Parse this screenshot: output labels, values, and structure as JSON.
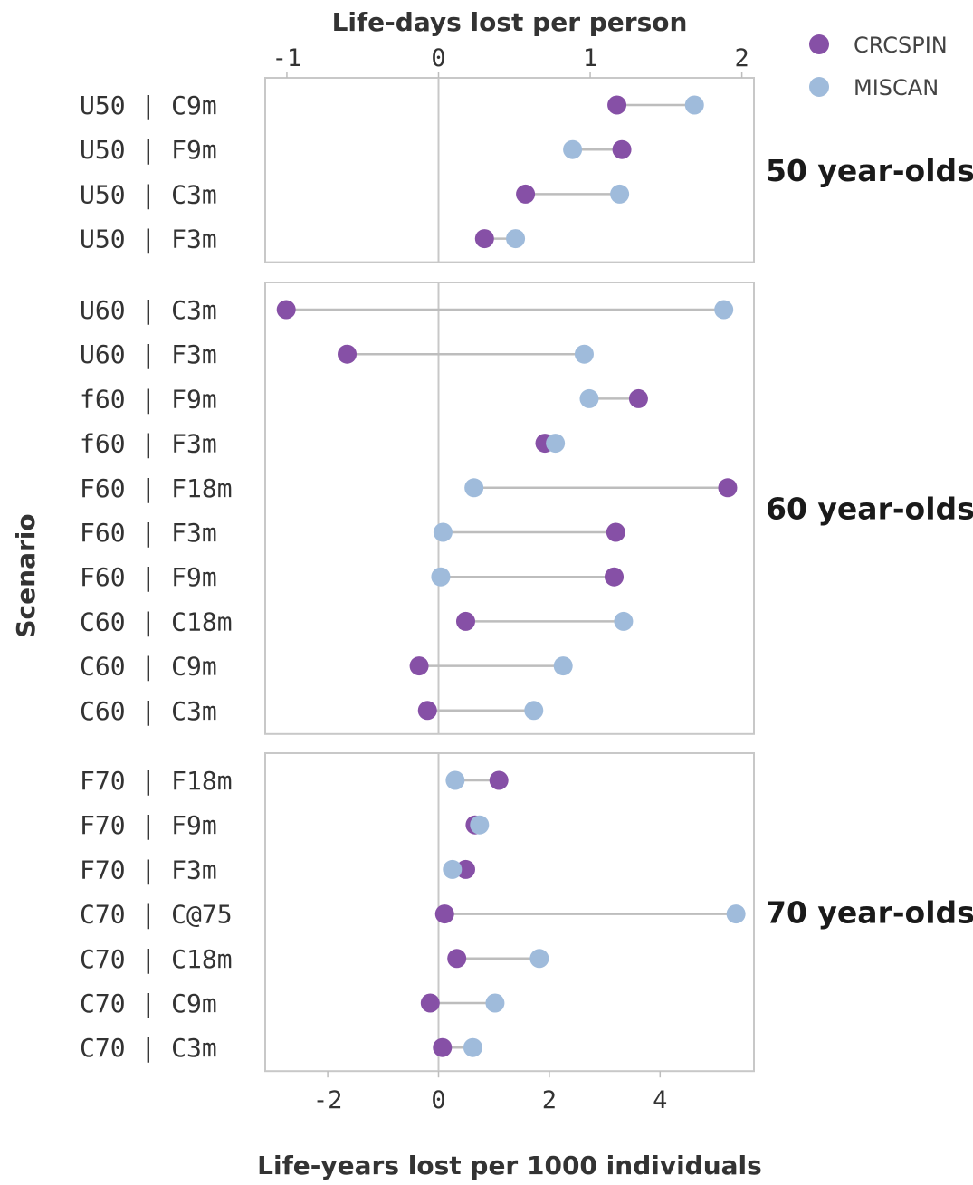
{
  "chart_data": {
    "type": "dumbbell",
    "xlabel_bottom": "Life-years lost per 1000 individuals",
    "xlabel_top": "Life-days lost per person",
    "ylabel": "Scenario",
    "bottom_ticks": [
      -2,
      0,
      2,
      4
    ],
    "top_ticks": [
      -1,
      0,
      1,
      2
    ],
    "top_tick_labels": [
      "-1",
      "0",
      "1",
      "2"
    ],
    "bottom_tick_labels": [
      "-2",
      "0",
      "2",
      "4"
    ],
    "xlim": [
      -3.15,
      5.7
    ],
    "legend": {
      "position": "top-right",
      "items": [
        {
          "name": "CRCSPIN",
          "color": "#8650a6"
        },
        {
          "name": "MISCAN",
          "color": "#9fbbdb"
        }
      ]
    },
    "series": [
      {
        "name": "CRCSPIN",
        "color": "#8650a6"
      },
      {
        "name": "MISCAN",
        "color": "#9fbbdb"
      }
    ],
    "panels": [
      {
        "label": "50 year-olds",
        "rows": [
          {
            "scenario": "U50 | C9m",
            "CRCSPIN": 3.22,
            "MISCAN": 4.62
          },
          {
            "scenario": "U50 | F9m",
            "CRCSPIN": 3.31,
            "MISCAN": 2.42
          },
          {
            "scenario": "U50 | C3m",
            "CRCSPIN": 1.57,
            "MISCAN": 3.27
          },
          {
            "scenario": "U50 | F3m",
            "CRCSPIN": 0.83,
            "MISCAN": 1.39
          }
        ]
      },
      {
        "label": "60 year-olds",
        "rows": [
          {
            "scenario": "U60 | C3m",
            "CRCSPIN": -2.75,
            "MISCAN": 5.15
          },
          {
            "scenario": "U60 | F3m",
            "CRCSPIN": -1.65,
            "MISCAN": 2.63
          },
          {
            "scenario": "f60 | F9m",
            "CRCSPIN": 3.61,
            "MISCAN": 2.72
          },
          {
            "scenario": "f60 | F3m",
            "CRCSPIN": 1.92,
            "MISCAN": 2.11
          },
          {
            "scenario": "F60 | F18m",
            "CRCSPIN": 5.22,
            "MISCAN": 0.64
          },
          {
            "scenario": "F60 | F3m",
            "CRCSPIN": 3.2,
            "MISCAN": 0.08
          },
          {
            "scenario": "F60 | F9m",
            "CRCSPIN": 3.17,
            "MISCAN": 0.04
          },
          {
            "scenario": "C60 | C18m",
            "CRCSPIN": 0.49,
            "MISCAN": 3.34
          },
          {
            "scenario": "C60 | C9m",
            "CRCSPIN": -0.35,
            "MISCAN": 2.25
          },
          {
            "scenario": "C60 | C3m",
            "CRCSPIN": -0.2,
            "MISCAN": 1.72
          }
        ]
      },
      {
        "label": "70 year-olds",
        "rows": [
          {
            "scenario": "F70 | F18m",
            "CRCSPIN": 1.09,
            "MISCAN": 0.3
          },
          {
            "scenario": "F70 | F9m",
            "CRCSPIN": 0.66,
            "MISCAN": 0.74
          },
          {
            "scenario": "F70 | F3m",
            "CRCSPIN": 0.49,
            "MISCAN": 0.25
          },
          {
            "scenario": "C70 | C@75",
            "CRCSPIN": 0.11,
            "MISCAN": 5.37
          },
          {
            "scenario": "C70 | C18m",
            "CRCSPIN": 0.33,
            "MISCAN": 1.82
          },
          {
            "scenario": "C70 | C9m",
            "CRCSPIN": -0.15,
            "MISCAN": 1.02
          },
          {
            "scenario": "C70 | C3m",
            "CRCSPIN": 0.07,
            "MISCAN": 0.62
          }
        ]
      }
    ]
  }
}
